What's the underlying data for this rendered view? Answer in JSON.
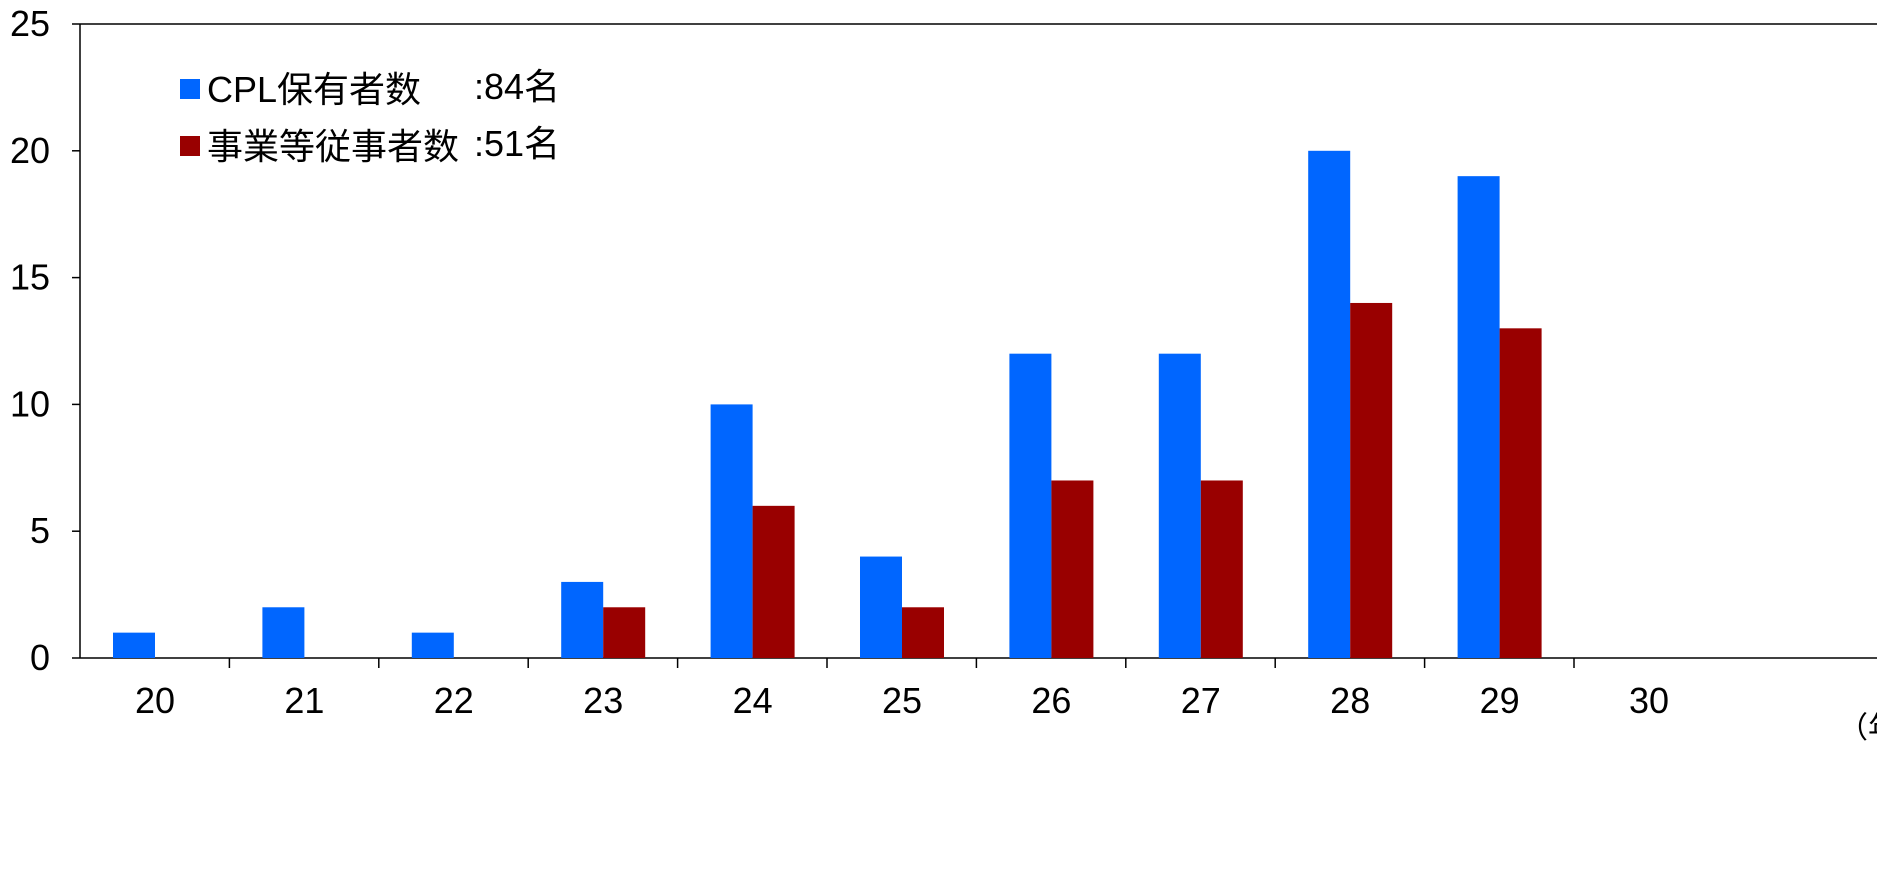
{
  "chart_data": {
    "type": "bar",
    "categories": [
      "20",
      "21",
      "22",
      "23",
      "24",
      "25",
      "26",
      "27",
      "28",
      "29",
      "30"
    ],
    "series": [
      {
        "name": "CPL保有者数",
        "total_label": ":84名",
        "color": "#0066ff",
        "values": [
          1,
          2,
          1,
          3,
          10,
          4,
          12,
          12,
          20,
          19,
          0
        ]
      },
      {
        "name": "事業等従事者数",
        "total_label": ":51名",
        "color": "#990000",
        "values": [
          0,
          0,
          0,
          2,
          6,
          2,
          7,
          7,
          14,
          13,
          0
        ]
      }
    ],
    "ylim": [
      0,
      25
    ],
    "yticks": [
      "0",
      "5",
      "10",
      "15",
      "20",
      "25"
    ],
    "x_unit_label": "（年",
    "legend_position": "top-left",
    "grid": false
  }
}
